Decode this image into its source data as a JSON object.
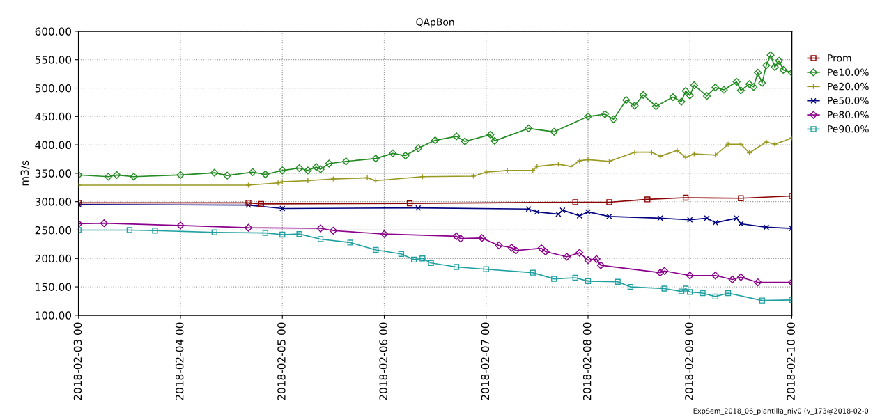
{
  "chart_data": {
    "type": "line",
    "title": "QApBon",
    "ylabel": "m3/s",
    "xlim": [
      "2018-02-03",
      "2018-02-10"
    ],
    "xticks": [
      {
        "value": "2018-02-03",
        "label": "2018-02-03 00"
      },
      {
        "value": "2018-02-04",
        "label": "2018-02-04 00"
      },
      {
        "value": "2018-02-05",
        "label": "2018-02-05 00"
      },
      {
        "value": "2018-02-06",
        "label": "2018-02-06 00"
      },
      {
        "value": "2018-02-07",
        "label": "2018-02-07 00"
      },
      {
        "value": "2018-02-08",
        "label": "2018-02-08 00"
      },
      {
        "value": "2018-02-09",
        "label": "2018-02-09 00"
      },
      {
        "value": "2018-02-10",
        "label": "2018-02-10 00"
      }
    ],
    "ylim": [
      100,
      600
    ],
    "yticks": [
      {
        "value": 100,
        "label": "100.00"
      },
      {
        "value": 150,
        "label": "150.00"
      },
      {
        "value": 200,
        "label": "200.00"
      },
      {
        "value": 250,
        "label": "250.00"
      },
      {
        "value": 300,
        "label": "300.00"
      },
      {
        "value": 350,
        "label": "350.00"
      },
      {
        "value": 400,
        "label": "400.00"
      },
      {
        "value": 450,
        "label": "450.00"
      },
      {
        "value": 500,
        "label": "500.00"
      },
      {
        "value": 550,
        "label": "550.00"
      },
      {
        "value": 600,
        "label": "600.00"
      }
    ],
    "grid": true,
    "legend": "right",
    "line_style": "solid",
    "annotations": [
      "ExpSem_2018_06_plantilla_niv0 (v_173@2018-02-0"
    ],
    "series": [
      {
        "name": "Prom",
        "color": "#8b0000",
        "marker": "square",
        "x": [
          "2018-02-03T00:00",
          "2018-02-04T16:00",
          "2018-02-04T19:00",
          "2018-02-06T06:00",
          "2018-02-07T21:00",
          "2018-02-08T05:00",
          "2018-02-08T14:00",
          "2018-02-08T23:00",
          "2018-02-09T12:00",
          "2018-02-10T00:00"
        ],
        "values": [
          298,
          298,
          296,
          297,
          299,
          299,
          304,
          307,
          306,
          310
        ]
      },
      {
        "name": "Pe10.0%",
        "color": "#228b22",
        "marker": "diamond",
        "x": [
          "2018-02-03T00:00",
          "2018-02-03T07:00",
          "2018-02-03T09:00",
          "2018-02-03T13:00",
          "2018-02-04T00:00",
          "2018-02-04T08:00",
          "2018-02-04T11:00",
          "2018-02-04T17:00",
          "2018-02-04T20:00",
          "2018-02-05T00:00",
          "2018-02-05T04:00",
          "2018-02-05T06:00",
          "2018-02-05T08:00",
          "2018-02-05T09:00",
          "2018-02-05T11:00",
          "2018-02-05T15:00",
          "2018-02-05T22:00",
          "2018-02-06T02:00",
          "2018-02-06T05:00",
          "2018-02-06T08:00",
          "2018-02-06T12:00",
          "2018-02-06T17:00",
          "2018-02-06T19:00",
          "2018-02-07T01:00",
          "2018-02-07T02:00",
          "2018-02-07T10:00",
          "2018-02-07T16:00",
          "2018-02-08T00:00",
          "2018-02-08T04:00",
          "2018-02-08T06:00",
          "2018-02-08T09:00",
          "2018-02-08T11:00",
          "2018-02-08T13:00",
          "2018-02-08T16:00",
          "2018-02-08T20:00",
          "2018-02-08T22:00",
          "2018-02-08T23:00",
          "2018-02-09T00:00",
          "2018-02-09T01:00",
          "2018-02-09T04:00",
          "2018-02-09T06:00",
          "2018-02-09T08:00",
          "2018-02-09T11:00",
          "2018-02-09T12:00",
          "2018-02-09T14:00",
          "2018-02-09T15:00",
          "2018-02-09T16:00",
          "2018-02-09T17:00",
          "2018-02-09T18:00",
          "2018-02-09T19:00",
          "2018-02-09T20:00",
          "2018-02-09T21:00",
          "2018-02-09T22:00",
          "2018-02-10T00:00"
        ],
        "values": [
          347,
          344,
          347,
          344,
          347,
          351,
          346,
          352,
          348,
          355,
          359,
          355,
          361,
          357,
          367,
          371,
          376,
          385,
          381,
          394,
          408,
          415,
          406,
          418,
          407,
          429,
          423,
          450,
          454,
          445,
          479,
          469,
          488,
          468,
          484,
          476,
          495,
          487,
          505,
          486,
          501,
          497,
          511,
          496,
          507,
          502,
          527,
          509,
          540,
          558,
          537,
          548,
          532,
          527
        ]
      },
      {
        "name": "Pe20.0%",
        "color": "#999922",
        "marker": "plus",
        "x": [
          "2018-02-03T00:00",
          "2018-02-04T16:00",
          "2018-02-04T23:00",
          "2018-02-05T00:00",
          "2018-02-05T06:00",
          "2018-02-05T12:00",
          "2018-02-05T20:00",
          "2018-02-05T22:00",
          "2018-02-06T09:00",
          "2018-02-06T21:00",
          "2018-02-07T00:00",
          "2018-02-07T05:00",
          "2018-02-07T11:00",
          "2018-02-07T12:00",
          "2018-02-07T17:00",
          "2018-02-07T20:00",
          "2018-02-07T22:00",
          "2018-02-08T00:00",
          "2018-02-08T05:00",
          "2018-02-08T11:00",
          "2018-02-08T15:00",
          "2018-02-08T17:00",
          "2018-02-08T21:00",
          "2018-02-08T23:00",
          "2018-02-09T01:00",
          "2018-02-09T06:00",
          "2018-02-09T09:00",
          "2018-02-09T12:00",
          "2018-02-09T14:00",
          "2018-02-09T18:00",
          "2018-02-09T20:00",
          "2018-02-10T00:00"
        ],
        "values": [
          329,
          329,
          333,
          335,
          337,
          340,
          342,
          337,
          344,
          345,
          352,
          355,
          355,
          362,
          366,
          362,
          372,
          374,
          371,
          387,
          387,
          380,
          390,
          378,
          384,
          382,
          401,
          401,
          386,
          405,
          401,
          412
        ]
      },
      {
        "name": "Pe50.0%",
        "color": "#000080",
        "marker": "cross",
        "x": [
          "2018-02-03T00:00",
          "2018-02-04T16:00",
          "2018-02-05T00:00",
          "2018-02-06T08:00",
          "2018-02-07T10:00",
          "2018-02-07T12:00",
          "2018-02-07T17:00",
          "2018-02-07T18:00",
          "2018-02-07T22:00",
          "2018-02-08T00:00",
          "2018-02-08T05:00",
          "2018-02-08T17:00",
          "2018-02-09T00:00",
          "2018-02-09T04:00",
          "2018-02-09T06:00",
          "2018-02-09T11:00",
          "2018-02-09T12:00",
          "2018-02-09T18:00",
          "2018-02-10T00:00"
        ],
        "values": [
          295,
          294,
          288,
          289,
          287,
          282,
          278,
          285,
          275,
          282,
          274,
          271,
          268,
          271,
          263,
          271,
          261,
          255,
          253
        ]
      },
      {
        "name": "Pe80.0%",
        "color": "#8b008b",
        "marker": "diamond",
        "x": [
          "2018-02-03T00:00",
          "2018-02-03T06:00",
          "2018-02-04T00:00",
          "2018-02-04T16:00",
          "2018-02-05T09:00",
          "2018-02-05T12:00",
          "2018-02-06T00:00",
          "2018-02-06T17:00",
          "2018-02-06T18:00",
          "2018-02-06T23:00",
          "2018-02-07T03:00",
          "2018-02-07T06:00",
          "2018-02-07T07:00",
          "2018-02-07T13:00",
          "2018-02-07T14:00",
          "2018-02-07T19:00",
          "2018-02-07T22:00",
          "2018-02-08T00:00",
          "2018-02-08T02:00",
          "2018-02-08T03:00",
          "2018-02-08T17:00",
          "2018-02-08T18:00",
          "2018-02-09T00:00",
          "2018-02-09T06:00",
          "2018-02-09T10:00",
          "2018-02-09T12:00",
          "2018-02-09T16:00",
          "2018-02-10T00:00"
        ],
        "values": [
          261,
          262,
          258,
          254,
          253,
          249,
          243,
          239,
          235,
          236,
          223,
          219,
          214,
          218,
          212,
          203,
          210,
          197,
          199,
          188,
          175,
          178,
          170,
          170,
          163,
          167,
          158,
          158
        ]
      },
      {
        "name": "Pe90.0%",
        "color": "#20a0a0",
        "marker": "square",
        "x": [
          "2018-02-03T00:00",
          "2018-02-03T12:00",
          "2018-02-03T18:00",
          "2018-02-04T08:00",
          "2018-02-04T20:00",
          "2018-02-05T00:00",
          "2018-02-05T04:00",
          "2018-02-05T09:00",
          "2018-02-05T16:00",
          "2018-02-05T22:00",
          "2018-02-06T04:00",
          "2018-02-06T07:00",
          "2018-02-06T09:00",
          "2018-02-06T11:00",
          "2018-02-06T17:00",
          "2018-02-07T00:00",
          "2018-02-07T11:00",
          "2018-02-07T16:00",
          "2018-02-07T21:00",
          "2018-02-08T00:00",
          "2018-02-08T07:00",
          "2018-02-08T10:00",
          "2018-02-08T18:00",
          "2018-02-08T22:00",
          "2018-02-08T23:00",
          "2018-02-09T00:00",
          "2018-02-09T03:00",
          "2018-02-09T06:00",
          "2018-02-09T09:00",
          "2018-02-09T17:00",
          "2018-02-10T00:00"
        ],
        "values": [
          250,
          250,
          249,
          246,
          245,
          242,
          243,
          234,
          228,
          215,
          208,
          198,
          200,
          192,
          185,
          181,
          175,
          164,
          166,
          160,
          159,
          150,
          147,
          142,
          147,
          141,
          139,
          133,
          139,
          126,
          127
        ]
      }
    ]
  }
}
